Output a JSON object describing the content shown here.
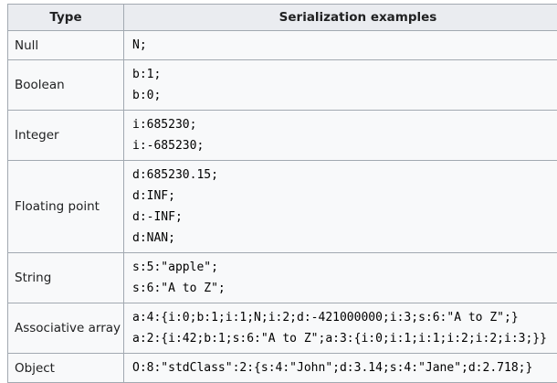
{
  "table": {
    "headers": {
      "type": "Type",
      "examples": "Serialization examples"
    },
    "rows": [
      {
        "type": "Null",
        "examples": [
          "N;"
        ]
      },
      {
        "type": "Boolean",
        "examples": [
          "b:1;",
          "b:0;"
        ]
      },
      {
        "type": "Integer",
        "examples": [
          "i:685230;",
          "i:-685230;"
        ]
      },
      {
        "type": "Floating point",
        "examples": [
          "d:685230.15;",
          "d:INF;",
          "d:-INF;",
          "d:NAN;"
        ]
      },
      {
        "type": "String",
        "examples": [
          "s:5:\"apple\";",
          "s:6:\"A to Z\";"
        ]
      },
      {
        "type": "Associative array",
        "examples": [
          "a:4:{i:0;b:1;i:1;N;i:2;d:-421000000;i:3;s:6:\"A to Z\";}",
          "a:2:{i:42;b:1;s:6:\"A to Z\";a:3:{i:0;i:1;i:1;i:2;i:2;i:3;}}"
        ]
      },
      {
        "type": "Object",
        "examples": [
          "O:8:\"stdClass\":2:{s:4:\"John\";d:3.14;s:4:\"Jane\";d:2.718;}"
        ]
      }
    ]
  }
}
